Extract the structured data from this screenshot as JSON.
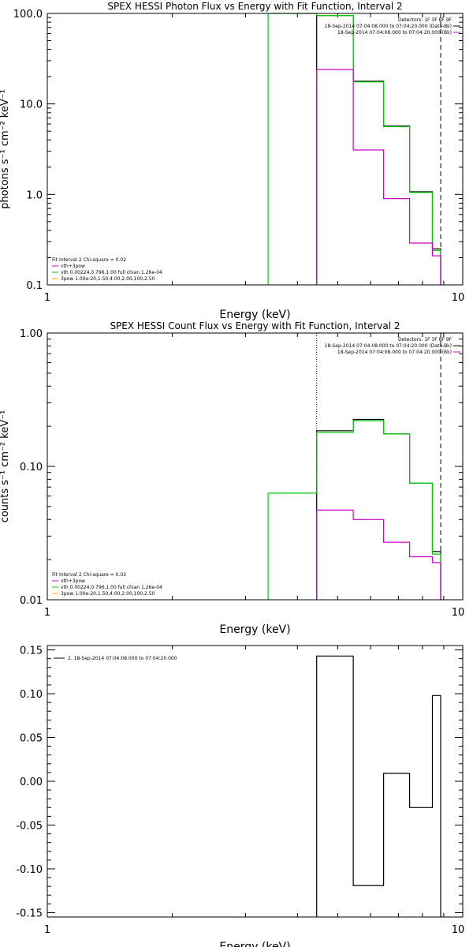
{
  "chart_data": [
    {
      "type": "line",
      "title": "SPEX HESSI Photon Flux vs Energy with Fit Function, Interval 2",
      "xlabel": "Energy (keV)",
      "ylabel": "photons s⁻¹ cm⁻² keV⁻¹",
      "xscale": "log",
      "yscale": "log",
      "xlim": [
        1,
        10
      ],
      "ylim": [
        0.1,
        100
      ],
      "xtick_labels": [
        "1",
        "10"
      ],
      "ytick_labels": [
        "0.1",
        "1.0",
        "10.0",
        "100.0"
      ],
      "legend_top_right": [
        {
          "text": "Detectors: 1F 3F 8F 9F",
          "color": "#000000"
        },
        {
          "text": "18-Sep-2014 07:04:08.000 to 07:04:20.000 (Data-Bk)",
          "color": "#000000"
        },
        {
          "text": "18-Sep-2014 07:04:08.000 to 07:04:20.000 (Bk)",
          "color": "#cc00cc"
        }
      ],
      "legend_bottom_left": [
        {
          "text": "Fit Interval 2   Chi-square = 0.02",
          "color": "#000000"
        },
        {
          "text": "vth+3pow",
          "color": "#cc00cc"
        },
        {
          "text": "vth 0.00224,0.796,1.00  full chian 1.26e-04",
          "color": "#00cc00"
        },
        {
          "text": "3pow 1.00e-20,1.50,4.00,2.00,100,2.50",
          "color": "#ffaa00"
        }
      ],
      "vlines": [
        {
          "x": 4.45,
          "style": "dotted"
        },
        {
          "x": 8.85,
          "style": "dashed"
        }
      ],
      "series": [
        {
          "color": "#000000",
          "edges": [
            4.45,
            5.45,
            6.45,
            7.45,
            8.45,
            8.85
          ],
          "values": [
            95,
            17.8,
            5.7,
            1.07,
            0.25
          ]
        },
        {
          "color": "#00cc00",
          "edges": [
            3.4,
            4.45,
            5.45,
            6.45,
            7.45,
            8.45,
            8.85
          ],
          "values": [
            100,
            95,
            17.5,
            5.6,
            1.05,
            0.24
          ]
        },
        {
          "color": "#cc00cc",
          "edges": [
            4.45,
            5.45,
            6.45,
            7.45,
            8.45,
            8.85
          ],
          "values": [
            24,
            3.1,
            0.9,
            0.29,
            0.21
          ]
        }
      ]
    },
    {
      "type": "line",
      "title": "SPEX HESSI Count Flux vs Energy with Fit Function, Interval 2",
      "xlabel": "Energy (keV)",
      "ylabel": "counts s⁻¹ cm⁻² keV⁻¹",
      "xscale": "log",
      "yscale": "log",
      "xlim": [
        1,
        10
      ],
      "ylim": [
        0.01,
        1
      ],
      "xtick_labels": [
        "1",
        "10"
      ],
      "ytick_labels": [
        "0.01",
        "0.10",
        "1.00"
      ],
      "legend_top_right": [
        {
          "text": "Detectors: 1F 3F 8F 9F",
          "color": "#000000"
        },
        {
          "text": "18-Sep-2014 07:04:08.000 to 07:04:20.000 (Data-Bk)",
          "color": "#000000"
        },
        {
          "text": "18-Sep-2014 07:04:08.000 to 07:04:20.000 (Bk)",
          "color": "#cc00cc"
        }
      ],
      "legend_bottom_left": [
        {
          "text": "Fit Interval 2   Chi-square = 0.02",
          "color": "#000000"
        },
        {
          "text": "vth+3pow",
          "color": "#cc00cc"
        },
        {
          "text": "vth 0.00224,0.796,1.00  full chian 1.26e-04",
          "color": "#00cc00"
        },
        {
          "text": "3pow 1.00e-20,1.50,4.00,2.00,100,2.50",
          "color": "#ffaa00"
        }
      ],
      "vlines": [
        {
          "x": 4.45,
          "style": "dotted"
        },
        {
          "x": 8.85,
          "style": "dashed"
        }
      ],
      "series": [
        {
          "color": "#000000",
          "edges": [
            4.45,
            5.45,
            6.45,
            7.45,
            8.45,
            8.85
          ],
          "values": [
            0.185,
            0.225,
            0.175,
            0.075,
            0.023
          ]
        },
        {
          "color": "#00cc00",
          "edges": [
            3.4,
            4.45,
            5.45,
            6.45,
            7.45,
            8.45,
            8.85
          ],
          "values": [
            0.063,
            0.18,
            0.22,
            0.175,
            0.075,
            0.022
          ]
        },
        {
          "color": "#cc00cc",
          "edges": [
            4.45,
            5.45,
            6.45,
            7.45,
            8.45,
            8.85
          ],
          "values": [
            0.047,
            0.04,
            0.027,
            0.021,
            0.019
          ]
        }
      ]
    },
    {
      "type": "line",
      "title": "",
      "xlabel": "Energy (keV)",
      "ylabel": "",
      "xscale": "log",
      "yscale": "linear",
      "xlim": [
        1,
        10
      ],
      "ylim": [
        -0.155,
        0.155
      ],
      "xtick_labels": [
        "1",
        "10"
      ],
      "yticks": [
        -0.15,
        -0.1,
        -0.05,
        0.0,
        0.05,
        0.1,
        0.15
      ],
      "ytick_labels": [
        "-0.15",
        "-0.10",
        "-0.05",
        "0.00",
        "0.05",
        "0.10",
        "0.15"
      ],
      "legend_top_left": [
        {
          "text": "2. 18-Sep-2014 07:04:08.000 to 07:04:20.000",
          "color": "#000000"
        }
      ],
      "vlines": [],
      "series": [
        {
          "color": "#000000",
          "edges": [
            4.45,
            5.45,
            6.45,
            7.45,
            8.45,
            8.85
          ],
          "values": [
            0.143,
            -0.119,
            0.009,
            -0.03,
            0.098
          ]
        }
      ]
    }
  ]
}
